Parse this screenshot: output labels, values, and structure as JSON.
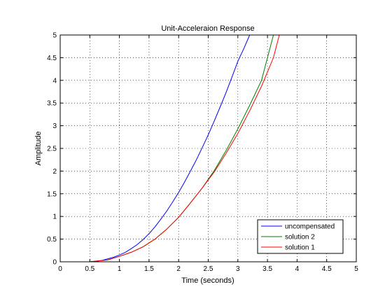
{
  "chart_data": {
    "type": "line",
    "title": "Unit-Acceleraion Response",
    "xlabel": "Time (seconds)",
    "ylabel": "Amplitude",
    "xlim": [
      0,
      5
    ],
    "ylim": [
      0,
      5
    ],
    "xticks": [
      0,
      0.5,
      1,
      1.5,
      2,
      2.5,
      3,
      3.5,
      4,
      4.5,
      5
    ],
    "xtick_labels": [
      "0",
      "0.5",
      "1",
      "1.5",
      "2",
      "2.5",
      "3",
      "3.5",
      "4",
      "4.5",
      "5"
    ],
    "yticks": [
      0,
      0.5,
      1,
      1.5,
      2,
      2.5,
      3,
      3.5,
      4,
      4.5,
      5
    ],
    "ytick_labels": [
      "0",
      "0.5",
      "1",
      "1.5",
      "2",
      "2.5",
      "3",
      "3.5",
      "4",
      "4.5",
      "5"
    ],
    "grid": true,
    "legend_position": "bottom-right",
    "series": [
      {
        "name": "uncompensated",
        "color": "#0000ff",
        "x": [
          0,
          0.5,
          0.7,
          0.9,
          1.0,
          1.1,
          1.2,
          1.3,
          1.4,
          1.5,
          1.6,
          1.7,
          1.8,
          1.9,
          2.0,
          2.1,
          2.2,
          2.3,
          2.4,
          2.5,
          2.6,
          2.7,
          2.8,
          2.9,
          3.0,
          3.1,
          3.2
        ],
        "y": [
          0,
          0,
          0.03,
          0.1,
          0.15,
          0.21,
          0.29,
          0.38,
          0.49,
          0.62,
          0.77,
          0.94,
          1.12,
          1.32,
          1.53,
          1.76,
          2.0,
          2.25,
          2.52,
          2.8,
          3.1,
          3.41,
          3.73,
          4.07,
          4.42,
          4.7,
          5.0
        ]
      },
      {
        "name": "solution 2",
        "color": "#008000",
        "x": [
          0,
          0.5,
          0.8,
          1.0,
          1.2,
          1.4,
          1.6,
          1.8,
          2.0,
          2.2,
          2.4,
          2.6,
          2.8,
          3.0,
          3.2,
          3.4,
          3.6
        ],
        "y": [
          0,
          0,
          0.04,
          0.12,
          0.21,
          0.33,
          0.5,
          0.72,
          0.98,
          1.3,
          1.63,
          2.01,
          2.45,
          2.93,
          3.45,
          4.0,
          5.0
        ]
      },
      {
        "name": "solution 1",
        "color": "#ff0000",
        "x": [
          0,
          0.5,
          0.8,
          1.0,
          1.2,
          1.4,
          1.6,
          1.8,
          2.0,
          2.2,
          2.4,
          2.6,
          2.8,
          3.0,
          3.2,
          3.4,
          3.6,
          3.7
        ],
        "y": [
          0,
          0,
          0.04,
          0.12,
          0.21,
          0.33,
          0.5,
          0.72,
          0.98,
          1.3,
          1.63,
          1.98,
          2.39,
          2.83,
          3.33,
          3.87,
          4.5,
          5.0
        ]
      }
    ]
  }
}
